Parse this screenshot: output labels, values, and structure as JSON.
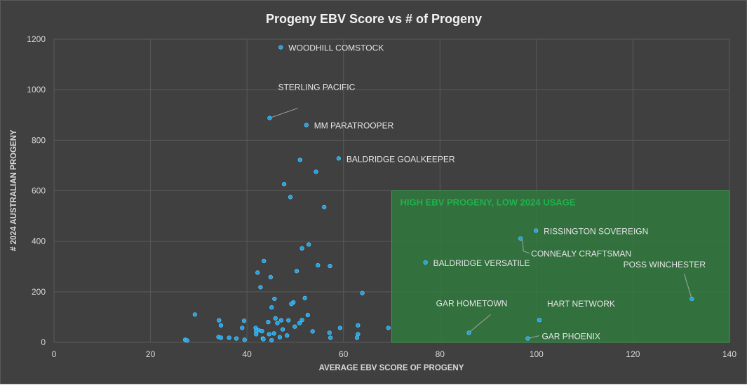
{
  "chart_data": {
    "type": "scatter",
    "title": "Progeny EBV Score vs # of Progeny",
    "xlabel": "AVERAGE EBV SCORE OF PROGENY",
    "ylabel": "# 2024 AUSTRALIAN PROGENY",
    "xlim": [
      0,
      140
    ],
    "ylim": [
      0,
      1200
    ],
    "x_ticks": [
      0,
      20,
      40,
      60,
      80,
      100,
      120,
      140
    ],
    "y_ticks": [
      0,
      200,
      400,
      600,
      800,
      1000,
      1200
    ],
    "grid": true,
    "marker_color": "#1aa3e8",
    "highlight_region": {
      "label": "HIGH EBV PROGENY, LOW 2024 USAGE",
      "x_range": [
        70,
        140
      ],
      "y_range": [
        0,
        600
      ],
      "color": "#2e7d3c"
    },
    "labeled_points": [
      {
        "name": "WOODHILL COMSTOCK",
        "x": 47.0,
        "y": 1168
      },
      {
        "name": "STERLING PACIFIC",
        "x": 44.7,
        "y": 888
      },
      {
        "name": "MM PARATROOPER",
        "x": 52.3,
        "y": 860
      },
      {
        "name": "BALDRIDGE GOALKEEPER",
        "x": 59.0,
        "y": 728
      },
      {
        "name": "RISSINGTON SOVEREIGN",
        "x": 99.9,
        "y": 442
      },
      {
        "name": "CONNEALY CRAFTSMAN",
        "x": 96.7,
        "y": 411
      },
      {
        "name": "BALDRIDGE VERSATILE",
        "x": 77.0,
        "y": 316
      },
      {
        "name": "POSS WINCHESTER",
        "x": 132.2,
        "y": 172
      },
      {
        "name": "GAR HOMETOWN",
        "x": 86.0,
        "y": 38
      },
      {
        "name": "HART NETWORK",
        "x": 100.6,
        "y": 88
      },
      {
        "name": "GAR PHOENIX",
        "x": 98.2,
        "y": 15
      }
    ],
    "points": [
      {
        "x": 51.0,
        "y": 722
      },
      {
        "x": 54.3,
        "y": 675
      },
      {
        "x": 47.7,
        "y": 626
      },
      {
        "x": 49.0,
        "y": 575
      },
      {
        "x": 56.0,
        "y": 535
      },
      {
        "x": 52.8,
        "y": 387
      },
      {
        "x": 51.4,
        "y": 372
      },
      {
        "x": 43.5,
        "y": 322
      },
      {
        "x": 54.7,
        "y": 305
      },
      {
        "x": 57.2,
        "y": 302
      },
      {
        "x": 50.3,
        "y": 282
      },
      {
        "x": 42.2,
        "y": 276
      },
      {
        "x": 44.9,
        "y": 258
      },
      {
        "x": 42.8,
        "y": 218
      },
      {
        "x": 63.9,
        "y": 195
      },
      {
        "x": 52.0,
        "y": 175
      },
      {
        "x": 45.7,
        "y": 172
      },
      {
        "x": 49.6,
        "y": 158
      },
      {
        "x": 49.2,
        "y": 152
      },
      {
        "x": 45.1,
        "y": 138
      },
      {
        "x": 29.2,
        "y": 110
      },
      {
        "x": 52.6,
        "y": 108
      },
      {
        "x": 45.9,
        "y": 95
      },
      {
        "x": 34.2,
        "y": 87
      },
      {
        "x": 39.4,
        "y": 85
      },
      {
        "x": 47.1,
        "y": 87
      },
      {
        "x": 48.6,
        "y": 87
      },
      {
        "x": 51.4,
        "y": 88
      },
      {
        "x": 44.4,
        "y": 80
      },
      {
        "x": 46.3,
        "y": 76
      },
      {
        "x": 50.9,
        "y": 76
      },
      {
        "x": 34.6,
        "y": 67
      },
      {
        "x": 63.0,
        "y": 67
      },
      {
        "x": 49.9,
        "y": 62
      },
      {
        "x": 41.8,
        "y": 57
      },
      {
        "x": 39.0,
        "y": 57
      },
      {
        "x": 59.3,
        "y": 57
      },
      {
        "x": 69.3,
        "y": 57
      },
      {
        "x": 47.4,
        "y": 51
      },
      {
        "x": 42.4,
        "y": 48
      },
      {
        "x": 41.9,
        "y": 45
      },
      {
        "x": 43.1,
        "y": 44
      },
      {
        "x": 53.6,
        "y": 43
      },
      {
        "x": 57.1,
        "y": 38
      },
      {
        "x": 45.6,
        "y": 35
      },
      {
        "x": 41.9,
        "y": 32
      },
      {
        "x": 44.6,
        "y": 32
      },
      {
        "x": 63.0,
        "y": 32
      },
      {
        "x": 48.3,
        "y": 27
      },
      {
        "x": 34.1,
        "y": 21
      },
      {
        "x": 34.6,
        "y": 18
      },
      {
        "x": 36.3,
        "y": 18
      },
      {
        "x": 37.8,
        "y": 15
      },
      {
        "x": 43.3,
        "y": 15
      },
      {
        "x": 46.8,
        "y": 20
      },
      {
        "x": 57.3,
        "y": 18
      },
      {
        "x": 62.8,
        "y": 18
      },
      {
        "x": 45.1,
        "y": 8
      },
      {
        "x": 39.5,
        "y": 10
      },
      {
        "x": 27.2,
        "y": 10
      },
      {
        "x": 27.6,
        "y": 7
      },
      {
        "x": 43.4,
        "y": 12
      }
    ]
  }
}
